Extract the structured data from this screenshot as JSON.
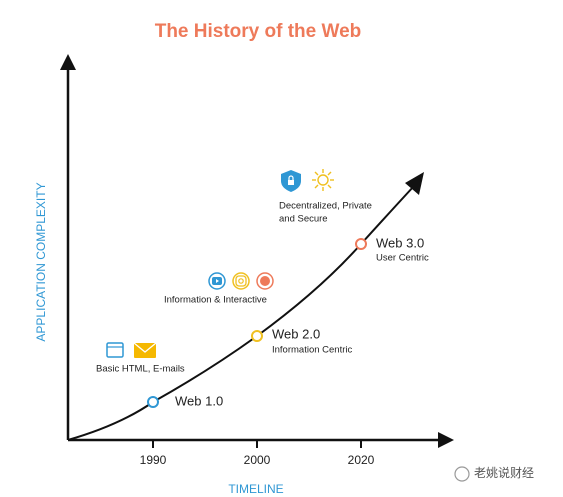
{
  "title": "The History of the Web",
  "axes": {
    "y_label": "APPLICATION COMPLEXITY",
    "x_label": "TIMELINE",
    "x_ticks": [
      "1990",
      "2000",
      "2020"
    ]
  },
  "nodes": [
    {
      "label": "Web 1.0"
    },
    {
      "label": "Web 2.0",
      "subtitle": "Information Centric"
    },
    {
      "label": "Web 3.0",
      "subtitle": "User Centric"
    }
  ],
  "annotations": [
    {
      "lines": [
        "Basic HTML, E-mails"
      ]
    },
    {
      "lines": [
        "Information & Interactive"
      ]
    },
    {
      "lines": [
        "Decentralized, Private",
        "and Secure"
      ]
    }
  ],
  "watermark": "老姚说财经"
}
